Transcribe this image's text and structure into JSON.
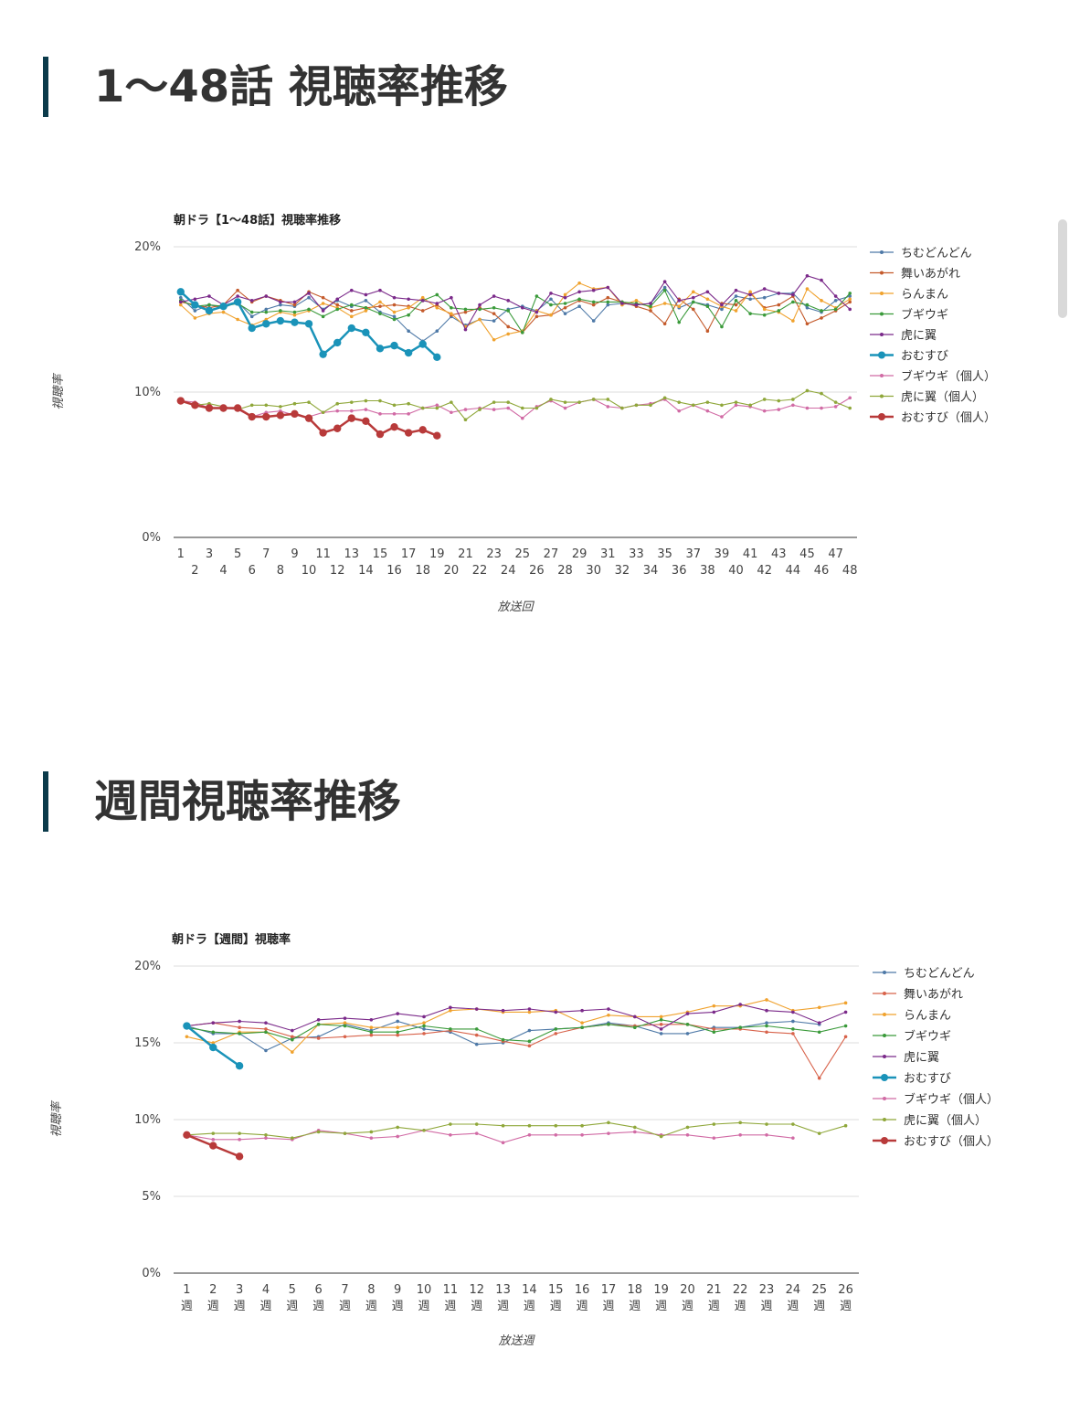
{
  "sections": [
    {
      "title": "1〜48話 視聴率推移"
    },
    {
      "title": "週間視聴率推移"
    }
  ],
  "chart_data": [
    {
      "type": "line",
      "title": "朝ドラ【1〜48話】視聴率推移",
      "xlabel": "放送回",
      "ylabel": "視聴率",
      "ylim": [
        0,
        20
      ],
      "y_ticks": [
        "0%",
        "10%",
        "20%"
      ],
      "x_categories": [
        "1",
        "2",
        "3",
        "4",
        "5",
        "6",
        "7",
        "8",
        "9",
        "10",
        "11",
        "12",
        "13",
        "14",
        "15",
        "16",
        "17",
        "18",
        "19",
        "20",
        "21",
        "22",
        "23",
        "24",
        "25",
        "26",
        "27",
        "28",
        "29",
        "30",
        "31",
        "32",
        "33",
        "34",
        "35",
        "36",
        "37",
        "38",
        "39",
        "40",
        "41",
        "42",
        "43",
        "44",
        "45",
        "46",
        "47",
        "48"
      ],
      "grid": true,
      "legend_position": "right",
      "series": [
        {
          "name": "ちむどんどん",
          "color": "#4e79a7",
          "values": [
            16.5,
            15.6,
            16.0,
            15.8,
            16.2,
            15.2,
            15.7,
            16.0,
            15.9,
            16.5,
            15.7,
            16.3,
            15.9,
            16.3,
            15.5,
            15.2,
            14.2,
            13.5,
            14.2,
            15.2,
            14.6,
            15.0,
            14.9,
            15.7,
            15.9,
            15.6,
            16.4,
            15.4,
            15.9,
            14.9,
            16.0,
            16.1,
            16.0,
            16.1,
            17.2,
            15.8,
            16.2,
            16.0,
            15.7,
            16.6,
            16.4,
            16.5,
            16.8,
            16.8,
            15.8,
            15.5,
            16.3,
            16.6
          ]
        },
        {
          "name": "舞いあがれ",
          "color": "#c45a2b",
          "values": [
            16.2,
            16.0,
            15.8,
            16.0,
            17.0,
            16.2,
            16.6,
            16.3,
            16.0,
            16.9,
            16.5,
            16.0,
            15.6,
            15.8,
            15.9,
            16.0,
            15.9,
            15.6,
            16.0,
            15.3,
            15.5,
            15.8,
            15.4,
            14.5,
            14.1,
            15.2,
            15.3,
            15.8,
            16.3,
            16.0,
            16.5,
            16.2,
            15.9,
            15.6,
            14.7,
            16.4,
            15.7,
            14.2,
            16.1,
            16.0,
            16.8,
            15.8,
            16.0,
            16.6,
            14.7,
            15.1,
            15.6,
            16.2
          ]
        },
        {
          "name": "らんまん",
          "color": "#f0a22e",
          "values": [
            16.0,
            15.1,
            15.4,
            15.5,
            15.0,
            14.6,
            15.0,
            15.5,
            15.3,
            15.6,
            16.1,
            15.8,
            15.2,
            15.6,
            16.2,
            15.5,
            15.8,
            16.5,
            15.8,
            15.4,
            14.5,
            15.0,
            13.6,
            14.0,
            14.2,
            15.6,
            15.3,
            16.7,
            17.5,
            17.1,
            17.2,
            16.0,
            16.3,
            15.8,
            16.1,
            15.9,
            16.9,
            16.4,
            15.9,
            15.6,
            16.9,
            15.7,
            15.5,
            14.9,
            17.1,
            16.3,
            15.8,
            16.4
          ]
        },
        {
          "name": "ブギウギ",
          "color": "#3a9a3a",
          "values": [
            16.3,
            15.9,
            16.0,
            15.9,
            16.1,
            15.5,
            15.5,
            15.6,
            15.5,
            15.7,
            15.2,
            15.7,
            16.0,
            15.8,
            15.4,
            15.0,
            15.3,
            16.3,
            16.7,
            15.8,
            15.7,
            15.7,
            15.8,
            15.6,
            14.1,
            16.6,
            16.0,
            16.1,
            16.4,
            16.2,
            16.2,
            16.2,
            16.1,
            15.9,
            17.0,
            14.8,
            16.2,
            15.9,
            14.5,
            16.3,
            15.4,
            15.3,
            15.6,
            16.2,
            16.0,
            15.6,
            15.7,
            16.8
          ]
        },
        {
          "name": "虎に翼",
          "color": "#7b2a8a",
          "values": [
            16.2,
            16.4,
            16.6,
            16.0,
            16.6,
            16.3,
            16.6,
            16.2,
            16.2,
            16.8,
            15.6,
            16.4,
            17.0,
            16.7,
            17.0,
            16.5,
            16.4,
            16.3,
            16.1,
            16.5,
            14.3,
            16.0,
            16.6,
            16.3,
            15.8,
            15.5,
            16.8,
            16.5,
            16.9,
            17.0,
            17.2,
            16.1,
            16.0,
            16.1,
            17.6,
            16.3,
            16.5,
            16.9,
            16.0,
            17.0,
            16.7,
            17.1,
            16.8,
            16.7,
            18.0,
            17.7,
            16.6,
            15.7
          ]
        },
        {
          "name": "おむすび",
          "color": "#1a93b9",
          "values": [
            16.9,
            16.0,
            15.6,
            15.9,
            16.2,
            14.4,
            14.7,
            14.9,
            14.8,
            14.7,
            12.6,
            13.4,
            14.4,
            14.1,
            13.0,
            13.2,
            12.7,
            13.3,
            12.4
          ]
        },
        {
          "name": "ブギウギ（個人）",
          "color": "#d16ba5",
          "values": [
            9.4,
            9.3,
            8.9,
            8.9,
            8.8,
            8.3,
            8.6,
            8.7,
            8.4,
            8.3,
            8.6,
            8.7,
            8.7,
            8.8,
            8.5,
            8.5,
            8.5,
            8.9,
            9.1,
            8.6,
            8.8,
            8.9,
            8.8,
            8.9,
            8.2,
            9.0,
            9.4,
            8.9,
            9.3,
            9.5,
            9.0,
            8.9,
            9.1,
            9.2,
            9.5,
            8.7,
            9.1,
            8.7,
            8.3,
            9.1,
            9.0,
            8.7,
            8.8,
            9.1,
            8.9,
            8.9,
            9.0,
            9.6
          ]
        },
        {
          "name": "虎に翼（個人）",
          "color": "#8fa73a",
          "values": [
            9.4,
            9.1,
            9.2,
            9.0,
            8.8,
            9.1,
            9.1,
            9.0,
            9.2,
            9.3,
            8.6,
            9.2,
            9.3,
            9.4,
            9.4,
            9.1,
            9.2,
            8.9,
            8.9,
            9.3,
            8.1,
            8.8,
            9.3,
            9.3,
            8.9,
            8.9,
            9.5,
            9.3,
            9.3,
            9.5,
            9.5,
            8.9,
            9.1,
            9.1,
            9.6,
            9.3,
            9.1,
            9.3,
            9.1,
            9.3,
            9.1,
            9.5,
            9.4,
            9.5,
            10.1,
            9.9,
            9.3,
            8.9
          ]
        },
        {
          "name": "おむすび（個人）",
          "color": "#b83a3a",
          "values": [
            9.4,
            9.1,
            8.9,
            8.9,
            8.9,
            8.3,
            8.3,
            8.4,
            8.5,
            8.2,
            7.2,
            7.5,
            8.2,
            8.0,
            7.1,
            7.6,
            7.2,
            7.4,
            7.0
          ]
        }
      ]
    },
    {
      "type": "line",
      "title": "朝ドラ【週間】視聴率",
      "xlabel": "放送週",
      "ylabel": "視聴率",
      "ylim": [
        0,
        20
      ],
      "y_ticks": [
        "0%",
        "5%",
        "10%",
        "15%",
        "20%"
      ],
      "x_categories": [
        "1 週",
        "2 週",
        "3 週",
        "4 週",
        "5 週",
        "6 週",
        "7 週",
        "8 週",
        "9 週",
        "10 週",
        "11 週",
        "12 週",
        "13 週",
        "14 週",
        "15 週",
        "16 週",
        "17 週",
        "18 週",
        "19 週",
        "20 週",
        "21 週",
        "22 週",
        "23 週",
        "24 週",
        "25 週",
        "26 週"
      ],
      "grid": true,
      "legend_position": "right",
      "series": [
        {
          "name": "ちむどんどん",
          "color": "#4e79a7",
          "values": [
            16.1,
            15.6,
            15.6,
            14.5,
            15.3,
            15.4,
            16.2,
            15.8,
            16.4,
            15.9,
            15.7,
            14.9,
            15.0,
            15.8,
            15.9,
            16.0,
            16.3,
            16.1,
            15.6,
            15.6,
            16.0,
            16.0,
            16.3,
            16.4,
            16.2,
            null
          ]
        },
        {
          "name": "舞いあがれ",
          "color": "#d8634b",
          "values": [
            16.1,
            16.3,
            16.0,
            15.9,
            15.4,
            15.3,
            15.4,
            15.5,
            15.5,
            15.6,
            15.8,
            15.5,
            15.1,
            14.8,
            15.6,
            16.0,
            16.2,
            16.1,
            16.2,
            16.2,
            15.9,
            15.9,
            15.7,
            15.6,
            12.7,
            15.4
          ]
        },
        {
          "name": "らんまん",
          "color": "#f0a22e",
          "values": [
            15.4,
            15.0,
            15.7,
            15.7,
            14.4,
            16.2,
            16.3,
            16.0,
            16.0,
            16.3,
            17.1,
            17.2,
            17.0,
            17.0,
            17.1,
            16.3,
            16.8,
            16.7,
            16.7,
            17.0,
            17.4,
            17.4,
            17.8,
            17.1,
            17.3,
            17.6
          ]
        },
        {
          "name": "ブギウギ",
          "color": "#3a9a3a",
          "values": [
            16.0,
            15.7,
            15.6,
            15.7,
            15.2,
            16.2,
            16.1,
            15.7,
            15.7,
            16.1,
            15.9,
            15.9,
            15.2,
            15.1,
            15.9,
            16.0,
            16.2,
            16.0,
            16.5,
            16.2,
            15.7,
            16.0,
            16.1,
            15.9,
            15.7,
            16.1
          ]
        },
        {
          "name": "虎に翼",
          "color": "#7b2a8a",
          "values": [
            16.1,
            16.3,
            16.4,
            16.3,
            15.8,
            16.5,
            16.6,
            16.5,
            16.9,
            16.7,
            17.3,
            17.2,
            17.1,
            17.2,
            17.0,
            17.1,
            17.2,
            16.7,
            15.9,
            16.9,
            17.0,
            17.5,
            17.1,
            17.0,
            16.3,
            17.0
          ]
        },
        {
          "name": "おむすび",
          "color": "#1a93b9",
          "values": [
            16.1,
            14.7,
            13.5
          ]
        },
        {
          "name": "ブギウギ（個人）",
          "color": "#d16ba5",
          "values": [
            9.0,
            8.7,
            8.7,
            8.8,
            8.7,
            9.3,
            9.1,
            8.8,
            8.9,
            9.3,
            9.0,
            9.1,
            8.5,
            9.0,
            9.0,
            9.0,
            9.1,
            9.2,
            9.0,
            9.0,
            8.8,
            9.0,
            9.0,
            8.8,
            null,
            null
          ]
        },
        {
          "name": "虎に翼（個人）",
          "color": "#8fa73a",
          "values": [
            9.0,
            9.1,
            9.1,
            9.0,
            8.8,
            9.2,
            9.1,
            9.2,
            9.5,
            9.3,
            9.7,
            9.7,
            9.6,
            9.6,
            9.6,
            9.6,
            9.8,
            9.5,
            8.9,
            9.5,
            9.7,
            9.8,
            9.7,
            9.7,
            9.1,
            9.6
          ]
        },
        {
          "name": "おむすび（個人）",
          "color": "#b83a3a",
          "values": [
            9.0,
            8.3,
            7.6
          ]
        }
      ]
    }
  ]
}
